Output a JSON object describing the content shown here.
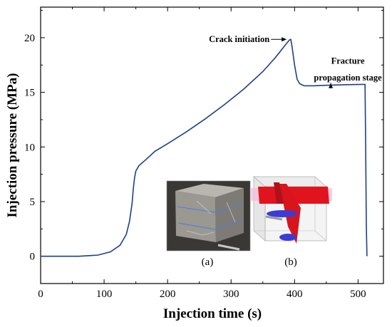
{
  "chart_data": {
    "type": "line",
    "xlabel": "Injection time (s)",
    "ylabel": "Injection pressure (MPa)",
    "xlim": [
      0,
      540
    ],
    "ylim": [
      -2.5,
      22.8
    ],
    "xticks": [
      0,
      100,
      200,
      300,
      400,
      500
    ],
    "yticks": [
      0,
      5,
      10,
      15,
      20
    ],
    "grid": false,
    "line_color": "#1f3f8a",
    "series": [
      {
        "x": [
          0,
          60,
          90,
          110,
          125,
          135,
          140,
          144,
          146,
          148,
          150,
          155,
          165,
          180,
          200,
          230,
          260,
          290,
          320,
          350,
          370,
          385,
          392,
          394,
          396,
          400,
          404,
          408,
          415,
          430,
          450,
          480,
          500,
          511,
          512,
          513,
          514
        ],
        "y": [
          0,
          0,
          0.1,
          0.4,
          1.0,
          2.0,
          3.2,
          4.8,
          6.2,
          7.2,
          7.8,
          8.3,
          8.8,
          9.6,
          10.3,
          11.4,
          12.6,
          13.9,
          15.3,
          16.9,
          18.2,
          19.3,
          19.8,
          19.85,
          19.2,
          17.5,
          16.2,
          15.8,
          15.6,
          15.6,
          15.65,
          15.7,
          15.72,
          15.73,
          10.0,
          3.0,
          0
        ]
      }
    ],
    "annotations": [
      {
        "text": "Crack initiation",
        "at": [
          392,
          19.85
        ]
      },
      {
        "text": "Fracture",
        "at": [
          457,
          17.6
        ]
      },
      {
        "text": "propagation stage",
        "at": [
          457,
          16.1
        ]
      }
    ]
  },
  "insets": {
    "a": {
      "caption": "(a)"
    },
    "b": {
      "caption": "(b)"
    }
  }
}
